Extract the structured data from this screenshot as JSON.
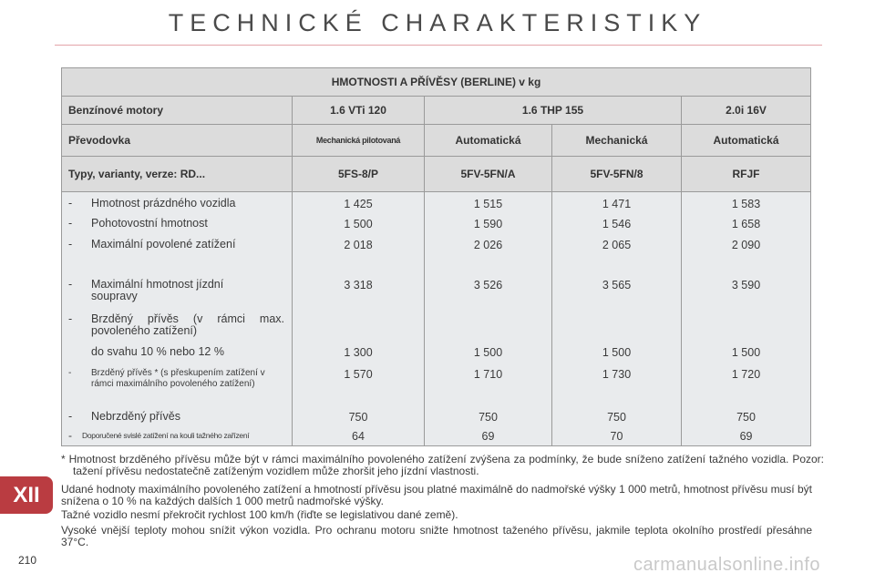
{
  "page": {
    "title": "TECHNICKÉ CHARAKTERISTIKY",
    "chapter": "XII",
    "page_number": "210",
    "watermark": "carmanualsonline.info"
  },
  "table": {
    "title": "HMOTNOSTI A PŘÍVĚSY (BERLINE) v kg",
    "engine_label": "Benzínové motory",
    "engines": [
      "1.6 VTi 120",
      "1.6 THP 155",
      "2.0i 16V"
    ],
    "transmission_label": "Převodovka",
    "transmissions": [
      "Mechanická pilotovaná",
      "Automatická",
      "Mechanická",
      "Automatická"
    ],
    "types_label": "Typy, varianty, verze: RD...",
    "types": [
      "5FS-8/P",
      "5FV-5FN/A",
      "5FV-5FN/8",
      "RFJF"
    ],
    "rows": [
      {
        "dash": "-",
        "label": "Hmotnost prázdného vozidla",
        "values": [
          "1 425",
          "1 515",
          "1 471",
          "1 583"
        ]
      },
      {
        "dash": "-",
        "label": "Pohotovostní hmotnost",
        "values": [
          "1 500",
          "1 590",
          "1 546",
          "1 658"
        ]
      },
      {
        "dash": "-",
        "label": "Maximální povolené zatížení",
        "values": [
          "2 018",
          "2 026",
          "2 065",
          "2 090"
        ]
      },
      {
        "dash": "-",
        "label": "Maximální hmotnost jízdní soupravy",
        "values": [
          "3 318",
          "3 526",
          "3 565",
          "3 590"
        ]
      },
      {
        "dash": "-",
        "label": "Brzděný přívěs (v rámci max. povoleného zatížení)",
        "values": [
          "",
          "",
          "",
          ""
        ]
      },
      {
        "dash": "",
        "label": "do svahu 10 % nebo 12 %",
        "values": [
          "1 300",
          "1 500",
          "1 500",
          "1 500"
        ]
      },
      {
        "dash": "-",
        "label": "Brzděný přívěs * (s přeskupením zatížení v rámci maximálního povoleného zatížení)",
        "values": [
          "1 570",
          "1 710",
          "1 730",
          "1 720"
        ]
      },
      {
        "dash": "-",
        "label": "Nebrzděný přívěs",
        "values": [
          "750",
          "750",
          "750",
          "750"
        ]
      },
      {
        "dash": "-",
        "label": "Doporučené svislé zatížení na kouli tažného zařízení",
        "values": [
          "64",
          "69",
          "70",
          "69"
        ]
      }
    ]
  },
  "notes": {
    "footnote": "* Hmotnost brzděného přívěsu může být v rámci maximálního povoleného zatížení zvýšena za podmínky, že bude sníženo zatížení tažného vozidla. Pozor: tažení přívěsu nedostatečně zatíženým vozidlem může zhoršit jeho jízdní vlastnosti.",
    "p1": "Udané hodnoty maximálního povoleného zatížení a hmotností přívěsu jsou platné maximálně do nadmořské výšky 1 000 metrů, hmotnost přívěsu musí být snížena o 10 % na každých dalších 1 000 metrů nadmořské výšky.",
    "p2": "Tažné vozidlo nesmí překročit rychlost 100 km/h (řiďte se legislativou dané země).",
    "p3": "Vysoké vnější teploty mohou snížit výkon vozidla. Pro ochranu motoru snižte hmotnost taženého přívěsu, jakmile teplota okolního prostředí přesáhne 37°C."
  }
}
